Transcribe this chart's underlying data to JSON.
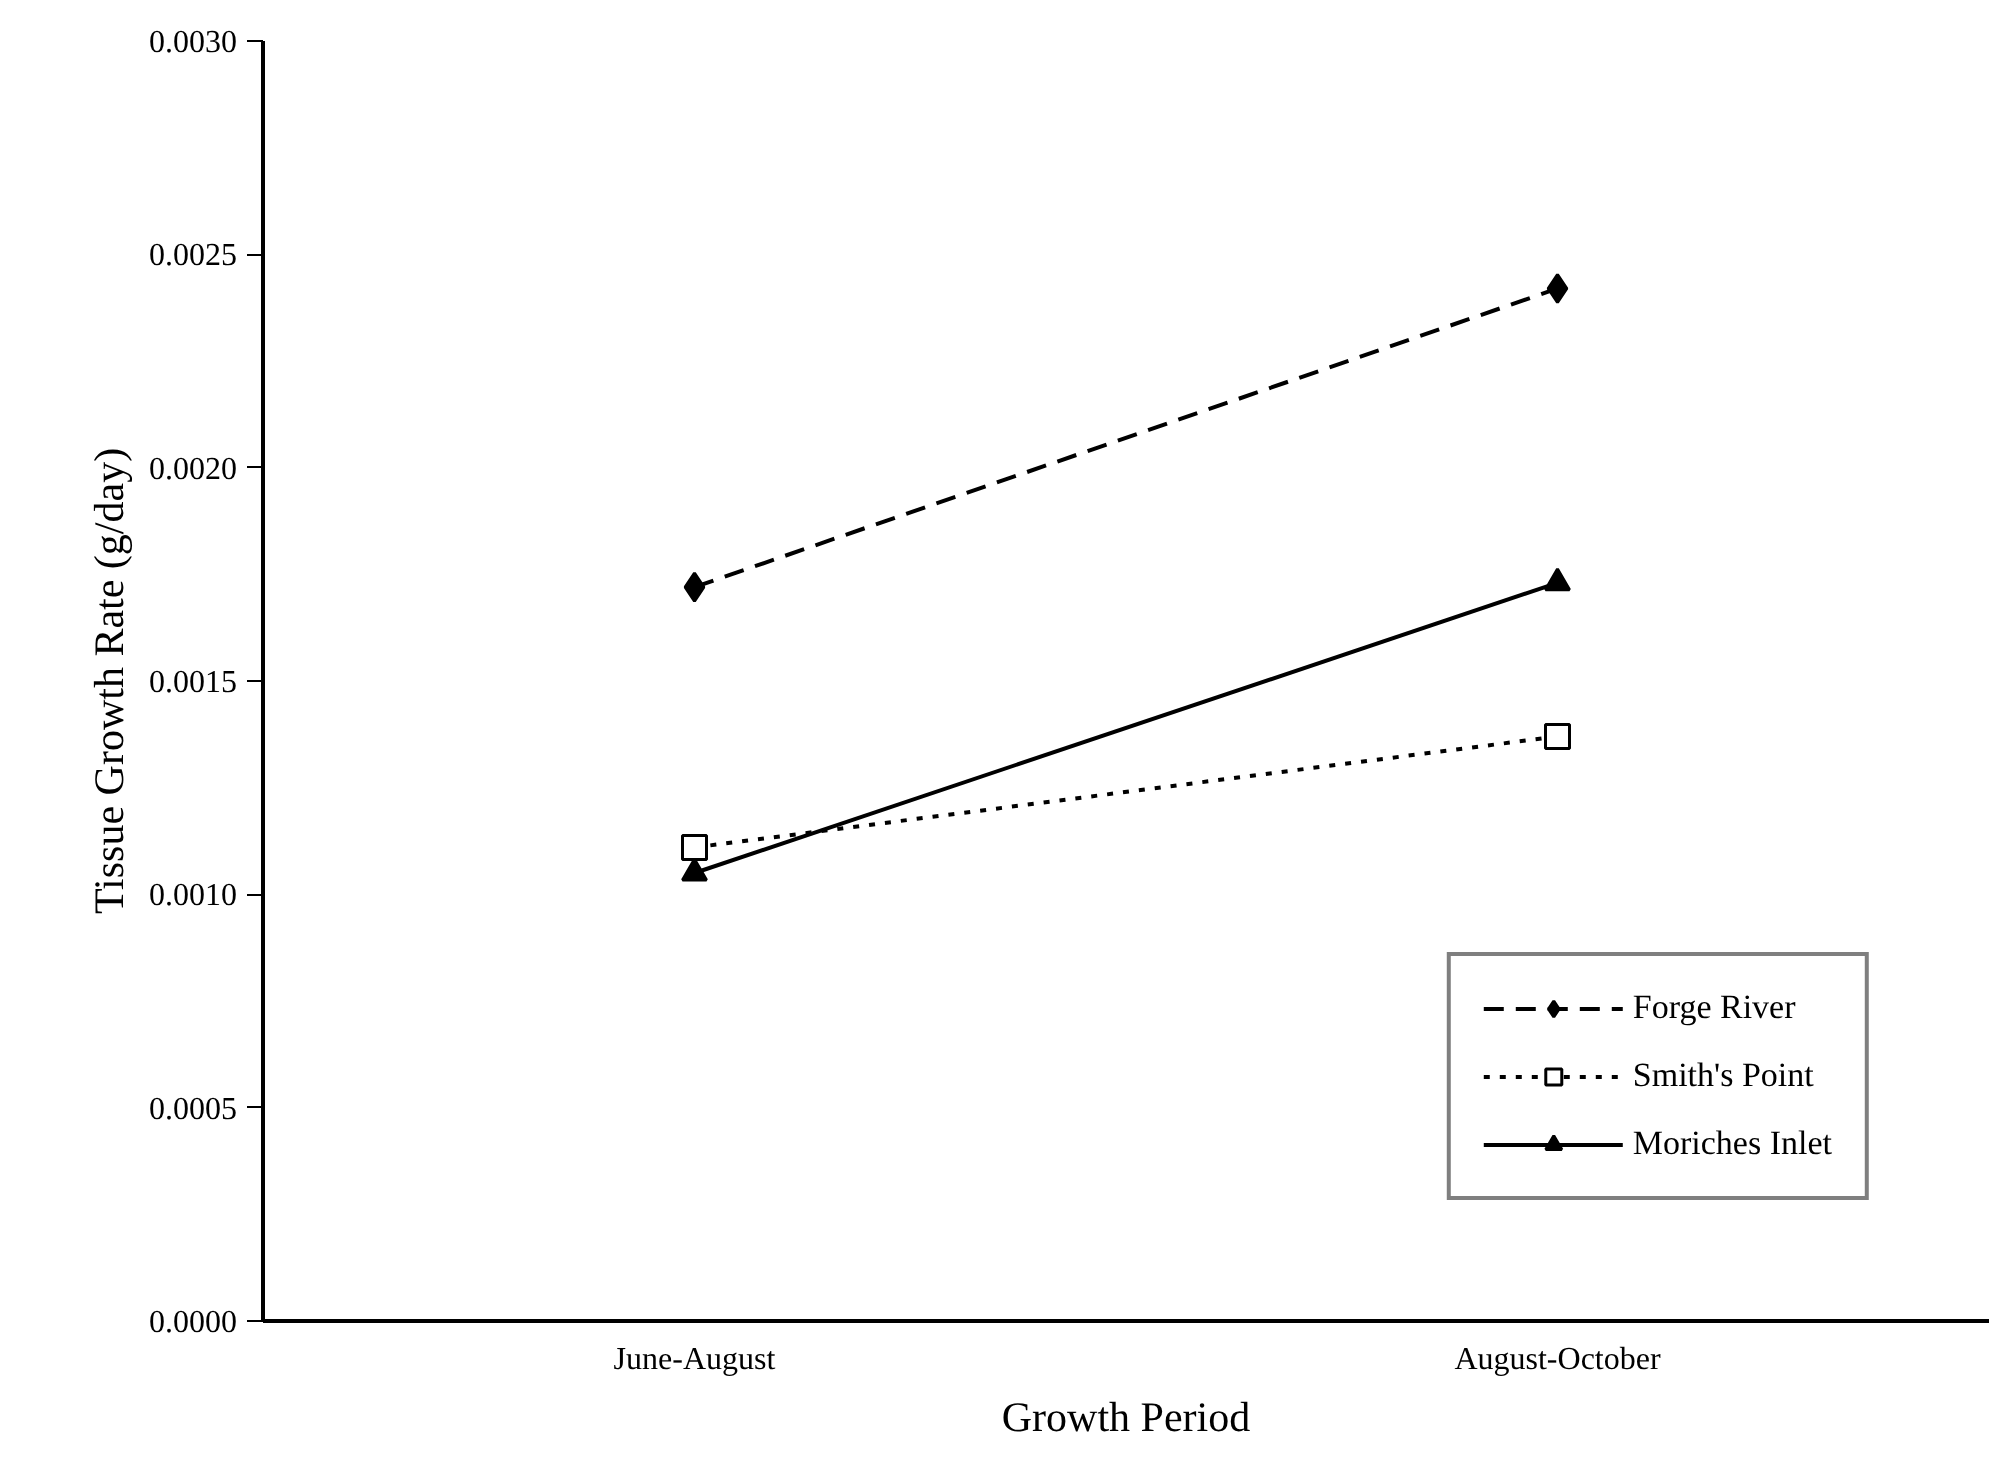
{
  "chart_data": {
    "type": "line",
    "xlabel": "Growth Period",
    "ylabel": "Tissue Growth Rate (g/day)",
    "categories": [
      "June-August",
      "August-October"
    ],
    "ylim": [
      0,
      0.003
    ],
    "yticks": [
      {
        "value": 0,
        "label": "0.0000"
      },
      {
        "value": 0.0005,
        "label": "0.0005"
      },
      {
        "value": 0.001,
        "label": "0.0010"
      },
      {
        "value": 0.0015,
        "label": "0.0015"
      },
      {
        "value": 0.002,
        "label": "0.0020"
      },
      {
        "value": 0.0025,
        "label": "0.0025"
      },
      {
        "value": 0.003,
        "label": "0.0030"
      }
    ],
    "series": [
      {
        "name": "Forge River",
        "color": "#000000",
        "values": [
          0.00172,
          0.00242
        ],
        "marker": "diamond",
        "line_style": "dashed"
      },
      {
        "name": "Smith's Point",
        "color": "#000000",
        "values": [
          0.00111,
          0.00137
        ],
        "marker": "square",
        "line_style": "dotted"
      },
      {
        "name": "Moriches Inlet",
        "color": "#000000",
        "values": [
          0.00105,
          0.00173
        ],
        "marker": "triangle",
        "line_style": "solid"
      }
    ],
    "grid": false,
    "legend": "bottom right"
  }
}
